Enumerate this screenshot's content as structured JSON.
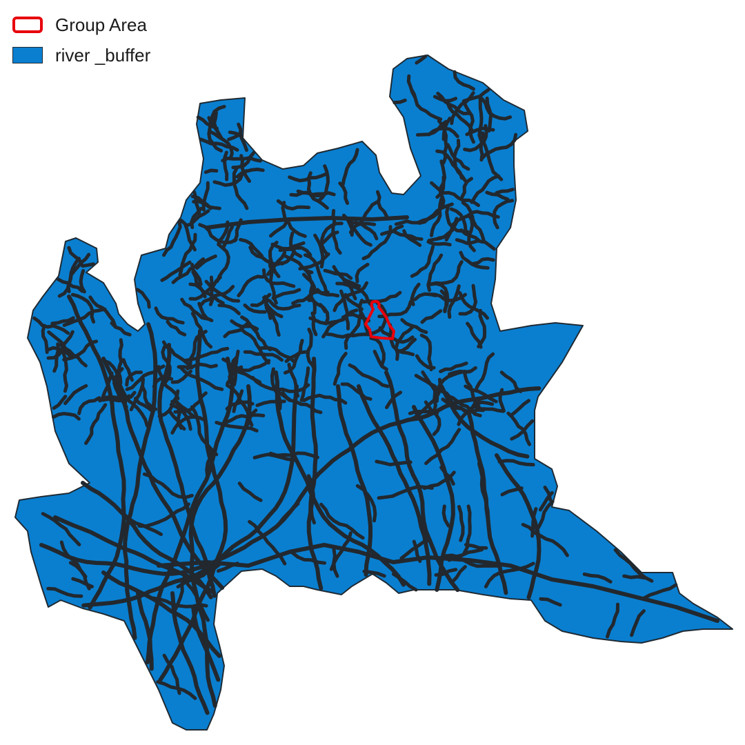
{
  "legend": {
    "items": [
      {
        "label": "Group Area",
        "style": "outline",
        "color": "#e8000b"
      },
      {
        "label": "river _buffer",
        "style": "fill",
        "color": "#0a7fd0"
      }
    ]
  },
  "map": {
    "region_fill": "#0a7fd0",
    "region_stroke": "#1f2a33",
    "river_color": "#22282e",
    "group_area_color": "#e8000b",
    "layers": [
      "river_buffer",
      "Group Area"
    ]
  }
}
